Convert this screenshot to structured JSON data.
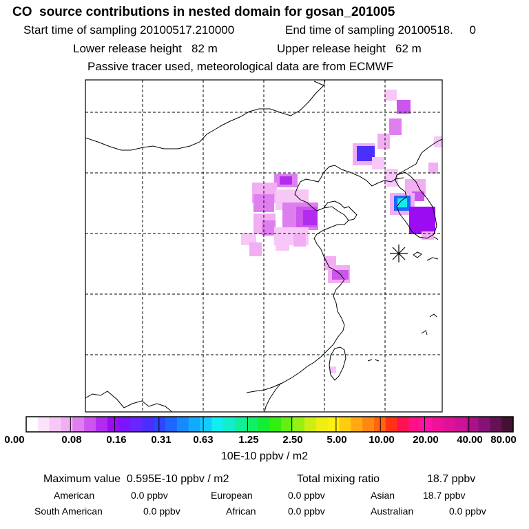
{
  "header": {
    "title": "CO  source contributions in nested domain for gosan_201005",
    "start_label": "Start time of sampling 20100517.210000",
    "end_label": "End time of sampling 20100518.     0",
    "lower_label": "Lower release height   82 m",
    "upper_label": "Upper release height   62 m",
    "note": "Passive tracer used, meteorological data are from ECMWF"
  },
  "colorbar": {
    "unit": "10E-10 ppbv / m2",
    "tick_labels": [
      "0.00",
      "0.08",
      "0.16",
      "0.31",
      "0.63",
      "1.25",
      "2.50",
      "5.00",
      "10.00",
      "20.00",
      "40.00",
      "80.00"
    ],
    "colors": [
      "#ffffff",
      "#fbe3fb",
      "#f7c8f7",
      "#f2aef2",
      "#df7fef",
      "#cc55ee",
      "#b22cf0",
      "#9b0cf2",
      "#7a15ff",
      "#6a26ff",
      "#4a30ff",
      "#2f45ff",
      "#1e66ff",
      "#1689ff",
      "#12aaff",
      "#12ccff",
      "#12eeee",
      "#12eecc",
      "#12ee99",
      "#12ee66",
      "#12ee33",
      "#33ee12",
      "#66ee12",
      "#99ee12",
      "#ccee12",
      "#eeee12",
      "#ffee12",
      "#ffcc12",
      "#ffaa12",
      "#ff8812",
      "#ff6612",
      "#ff3312",
      "#ff1255",
      "#ff1288",
      "#ff12aa",
      "#ee1299",
      "#dd1299",
      "#cc1299",
      "#aa1288",
      "#881177",
      "#661155",
      "#441133"
    ]
  },
  "stats": {
    "max_label": "Maximum value  0.595E-10 ppbv / m2",
    "total_label": "Total mixing ratio",
    "total_value": "18.7 ppbv"
  },
  "regions": [
    {
      "name": "American",
      "value": "0.0 ppbv"
    },
    {
      "name": "European",
      "value": "0.0 ppbv"
    },
    {
      "name": "Asian",
      "value": "18.7 ppbv"
    },
    {
      "name": "South American",
      "value": "0.0 ppbv"
    },
    {
      "name": "African",
      "value": "0.0 ppbv"
    },
    {
      "name": "Australian",
      "value": "0.0 ppbv"
    }
  ]
}
